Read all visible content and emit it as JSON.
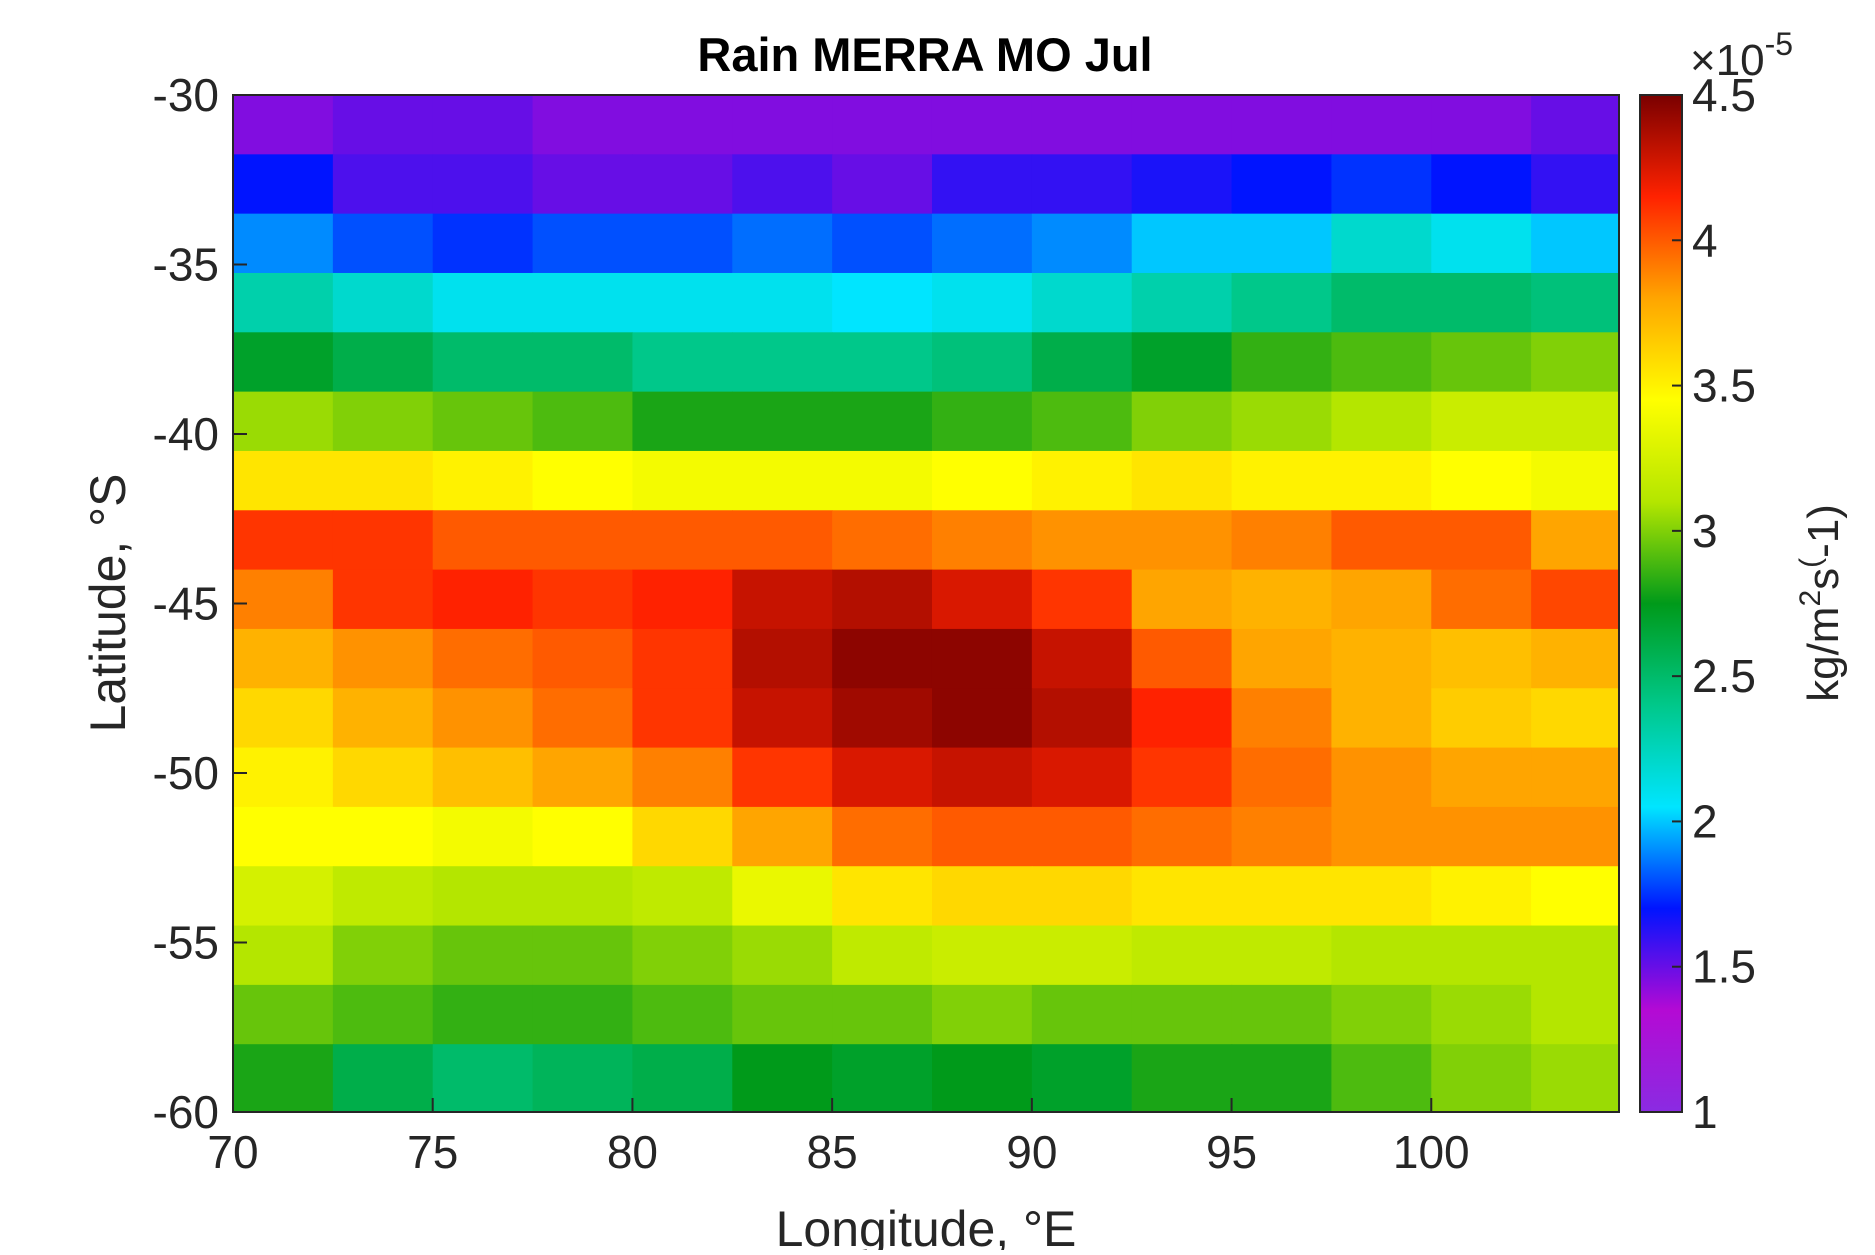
{
  "chart_data": {
    "type": "heatmap",
    "title": "Rain MERRA MO Jul",
    "xlabel": "Longitude, °E",
    "ylabel": "Latitude, °S",
    "xlim": [
      70,
      104.7
    ],
    "ylim": [
      -60,
      -30
    ],
    "x_ticks": [
      "70",
      "75",
      "80",
      "85",
      "90",
      "95",
      "100"
    ],
    "x_tick_values": [
      70,
      75,
      80,
      85,
      90,
      95,
      100
    ],
    "y_ticks": [
      "-30",
      "-35",
      "-40",
      "-45",
      "-50",
      "-55",
      "-60"
    ],
    "y_tick_values": [
      -30,
      -35,
      -40,
      -45,
      -50,
      -55,
      -60
    ],
    "colorbar": {
      "label": "kg/m^2s^(-1)",
      "label_parts": [
        "kg/m",
        "2",
        "s",
        "(",
        "-1)"
      ],
      "multiplier_base": "×10",
      "multiplier_exp": "-5",
      "ticks": [
        "1",
        "1.5",
        "2",
        "2.5",
        "3",
        "3.5",
        "4",
        "4.5"
      ],
      "tick_values": [
        1,
        1.5,
        2,
        2.5,
        3,
        3.5,
        4,
        4.5
      ],
      "range": [
        1,
        4.5
      ],
      "colormap": "jet-like: violet-blue-cyan-green-yellow-red-darkred",
      "colors": [
        "#8a2be2",
        "#b40ad4",
        "#0014ff",
        "#00e5ff",
        "#00c88a",
        "#009a1a",
        "#b4e600",
        "#ffff00",
        "#ffa500",
        "#ff2200",
        "#7a0000"
      ]
    },
    "grid": false,
    "cells": [
      [
        1.45,
        1.5,
        1.5,
        1.45,
        1.45,
        1.45,
        1.45,
        1.45,
        1.45,
        1.45,
        1.45,
        1.45,
        1.45,
        1.5
      ],
      [
        1.7,
        1.55,
        1.55,
        1.5,
        1.5,
        1.55,
        1.5,
        1.6,
        1.6,
        1.65,
        1.7,
        1.75,
        1.7,
        1.6
      ],
      [
        1.9,
        1.8,
        1.75,
        1.8,
        1.8,
        1.85,
        1.8,
        1.85,
        1.9,
        2.0,
        2.0,
        2.2,
        2.1,
        2.0
      ],
      [
        2.3,
        2.2,
        2.1,
        2.1,
        2.1,
        2.1,
        2.05,
        2.1,
        2.2,
        2.3,
        2.4,
        2.5,
        2.5,
        2.45
      ],
      [
        2.7,
        2.6,
        2.5,
        2.5,
        2.4,
        2.4,
        2.4,
        2.45,
        2.6,
        2.7,
        2.85,
        2.9,
        2.95,
        3.0
      ],
      [
        3.05,
        3.0,
        2.95,
        2.9,
        2.8,
        2.8,
        2.8,
        2.85,
        2.9,
        3.0,
        3.05,
        3.1,
        3.2,
        3.2
      ],
      [
        3.55,
        3.55,
        3.5,
        3.45,
        3.4,
        3.4,
        3.4,
        3.45,
        3.5,
        3.55,
        3.5,
        3.5,
        3.45,
        3.4
      ],
      [
        4.1,
        4.1,
        4.0,
        4.0,
        4.0,
        4.0,
        3.95,
        3.9,
        3.85,
        3.85,
        3.9,
        4.0,
        4.0,
        3.8
      ],
      [
        3.9,
        4.1,
        4.15,
        4.1,
        4.15,
        4.3,
        4.35,
        4.25,
        4.1,
        3.8,
        3.75,
        3.8,
        3.95,
        4.05
      ],
      [
        3.75,
        3.85,
        3.95,
        4.0,
        4.1,
        4.35,
        4.45,
        4.45,
        4.3,
        4.0,
        3.8,
        3.75,
        3.7,
        3.75
      ],
      [
        3.6,
        3.75,
        3.85,
        3.95,
        4.1,
        4.3,
        4.4,
        4.45,
        4.35,
        4.15,
        3.9,
        3.75,
        3.65,
        3.6
      ],
      [
        3.5,
        3.6,
        3.7,
        3.8,
        3.9,
        4.1,
        4.25,
        4.3,
        4.25,
        4.1,
        3.95,
        3.85,
        3.8,
        3.8
      ],
      [
        3.45,
        3.45,
        3.4,
        3.45,
        3.6,
        3.8,
        3.95,
        4.0,
        4.0,
        3.95,
        3.9,
        3.85,
        3.85,
        3.85
      ],
      [
        3.25,
        3.15,
        3.1,
        3.1,
        3.15,
        3.35,
        3.55,
        3.6,
        3.6,
        3.55,
        3.55,
        3.55,
        3.5,
        3.45
      ],
      [
        3.1,
        3.0,
        2.95,
        2.95,
        3.0,
        3.05,
        3.15,
        3.2,
        3.2,
        3.15,
        3.15,
        3.1,
        3.1,
        3.1
      ],
      [
        2.95,
        2.9,
        2.85,
        2.85,
        2.9,
        2.95,
        2.95,
        3.0,
        2.95,
        2.95,
        2.95,
        3.0,
        3.05,
        3.1
      ],
      [
        2.8,
        2.6,
        2.5,
        2.55,
        2.6,
        2.75,
        2.7,
        2.75,
        2.7,
        2.8,
        2.8,
        2.9,
        3.0,
        3.05
      ]
    ],
    "cell_x_edges": [
      70,
      72.5,
      75,
      77.5,
      80,
      82.5,
      85,
      87.5,
      90,
      92.5,
      95,
      97.5,
      100,
      102.5,
      104.7
    ],
    "cell_y_edges": [
      -30,
      -31.75,
      -33.5,
      -35.25,
      -37,
      -38.75,
      -40.5,
      -42.25,
      -44,
      -45.75,
      -47.5,
      -49.25,
      -51,
      -52.75,
      -54.5,
      -56.25,
      -58,
      -60
    ]
  }
}
